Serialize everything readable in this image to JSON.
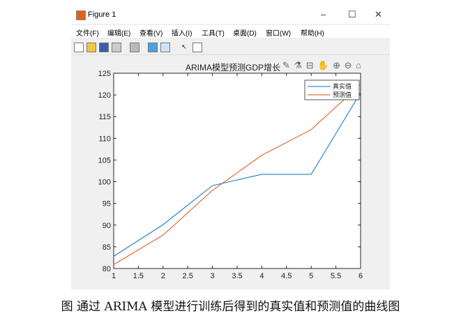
{
  "window": {
    "title": "Figure 1",
    "minimize": "–",
    "maximize": "☐",
    "close": "✕"
  },
  "menu": [
    "文件(F)",
    "编辑(E)",
    "查看(V)",
    "插入(I)",
    "工具(T)",
    "桌面(D)",
    "窗口(W)",
    "帮助(H)"
  ],
  "toolbar": [
    "new-file-icon",
    "open-icon",
    "save-icon",
    "print-icon",
    "print-preview-icon",
    "colorbar-icon",
    "legend-icon",
    "pointer-icon",
    "property-editor-icon"
  ],
  "axes_toolbar": "✎ ⚗ ⊟ ✋ ⊕ ⊖ ⌂",
  "caption": "图  通过 ARIMA 模型进行训练后得到的真实值和预测值的曲线图",
  "chart_data": {
    "type": "line",
    "title": "ARIMA模型预测GDP增长",
    "x": [
      1,
      2,
      3,
      4,
      5,
      6
    ],
    "xlim": [
      1,
      6
    ],
    "ylim": [
      80,
      125
    ],
    "xticks": [
      "1",
      "1.5",
      "2",
      "2.5",
      "3",
      "3.5",
      "4",
      "4.5",
      "5",
      "5.5",
      "6"
    ],
    "yticks": [
      "80",
      "85",
      "90",
      "95",
      "100",
      "105",
      "110",
      "115",
      "120",
      "125"
    ],
    "legend": "top-right",
    "series": [
      {
        "name": "真实值",
        "color": "#0072bd",
        "values": [
          82.8,
          90.1,
          99.1,
          101.7,
          101.7,
          120.5
        ]
      },
      {
        "name": "预测值",
        "color": "#d95319",
        "values": [
          80.9,
          87.7,
          98.0,
          106.1,
          112.0,
          122.4
        ]
      }
    ]
  }
}
